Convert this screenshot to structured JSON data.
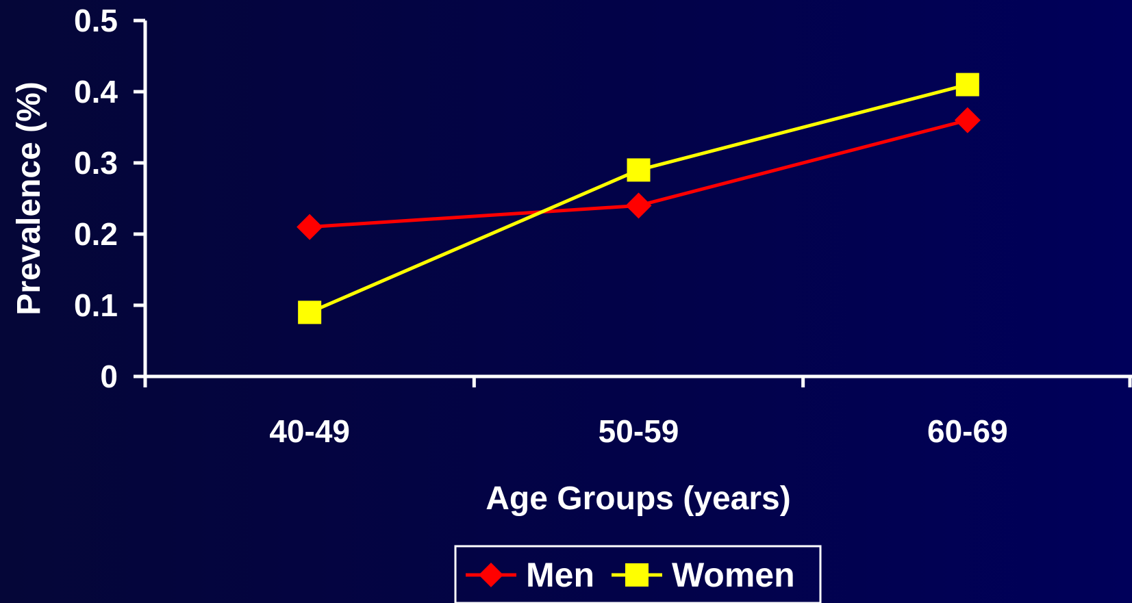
{
  "chart_data": {
    "type": "line",
    "categories": [
      "40-49",
      "50-59",
      "60-69"
    ],
    "series": [
      {
        "name": "Men",
        "values": [
          0.21,
          0.24,
          0.36
        ],
        "color": "#ff0000",
        "marker": "diamond"
      },
      {
        "name": "Women",
        "values": [
          0.09,
          0.29,
          0.41
        ],
        "color": "#ffff00",
        "marker": "square"
      }
    ],
    "title": "",
    "xlabel": "Age Groups (years)",
    "ylabel": "Prevalence (%)",
    "ylim": [
      0,
      0.5
    ],
    "yticks": [
      "0",
      "0.1",
      "0.2",
      "0.3",
      "0.4",
      "0.5"
    ],
    "grid": false,
    "legend_position": "bottom",
    "colors": {
      "axis": "#ffffff",
      "background": "#02024a"
    }
  }
}
